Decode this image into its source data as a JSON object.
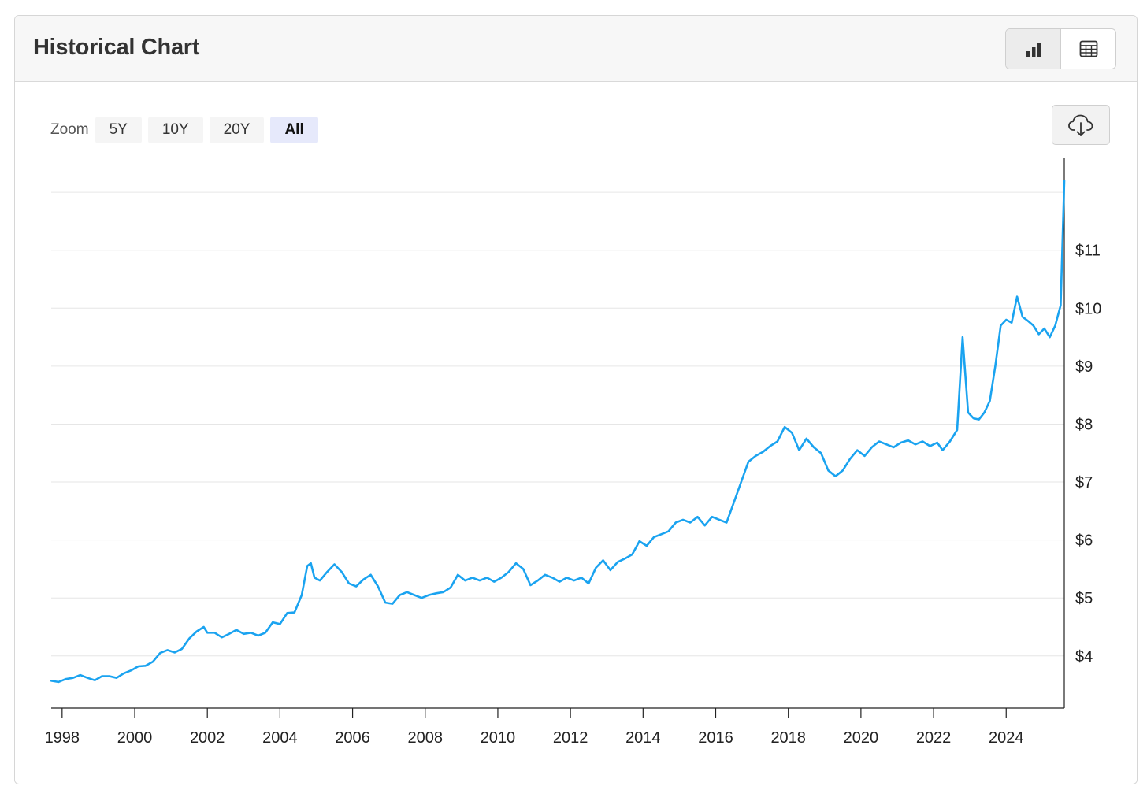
{
  "header": {
    "title": "Historical Chart",
    "chart_view_icon": "bar-chart-icon",
    "table_view_icon": "table-icon"
  },
  "zoom": {
    "label": "Zoom",
    "options": [
      "5Y",
      "10Y",
      "20Y",
      "All"
    ],
    "selected": "All"
  },
  "download_icon": "cloud-download-icon",
  "colors": {
    "line": "#1aa3f0",
    "grid": "#e6e6e6",
    "axis": "#222222",
    "zoom_selected_bg": "#e6e9fb"
  },
  "chart_data": {
    "type": "line",
    "title": "",
    "xlabel": "",
    "ylabel": "",
    "grid": true,
    "y_axis_side": "right",
    "xlim": [
      1997.7,
      2025.6
    ],
    "ylim": [
      3.1,
      12.6
    ],
    "x_ticks": [
      1998,
      2000,
      2002,
      2004,
      2006,
      2008,
      2010,
      2012,
      2014,
      2016,
      2018,
      2020,
      2022,
      2024
    ],
    "x_tick_labels": [
      "1998",
      "2000",
      "2002",
      "2004",
      "2006",
      "2008",
      "2010",
      "2012",
      "2014",
      "2016",
      "2018",
      "2020",
      "2022",
      "2024"
    ],
    "y_ticks": [
      4,
      5,
      6,
      7,
      8,
      9,
      10,
      11
    ],
    "y_tick_labels": [
      "$4",
      "$5",
      "$6",
      "$7",
      "$8",
      "$9",
      "$10",
      "$11"
    ],
    "y_gridlines": [
      4,
      5,
      6,
      7,
      8,
      9,
      10,
      11,
      12
    ],
    "series": [
      {
        "values": [
          [
            1997.7,
            3.57
          ],
          [
            1997.9,
            3.55
          ],
          [
            1998.1,
            3.6
          ],
          [
            1998.3,
            3.62
          ],
          [
            1998.5,
            3.67
          ],
          [
            1998.7,
            3.62
          ],
          [
            1998.9,
            3.58
          ],
          [
            1999.1,
            3.65
          ],
          [
            1999.3,
            3.65
          ],
          [
            1999.5,
            3.62
          ],
          [
            1999.7,
            3.7
          ],
          [
            1999.9,
            3.75
          ],
          [
            2000.1,
            3.82
          ],
          [
            2000.3,
            3.83
          ],
          [
            2000.5,
            3.9
          ],
          [
            2000.7,
            4.05
          ],
          [
            2000.9,
            4.1
          ],
          [
            2001.1,
            4.06
          ],
          [
            2001.3,
            4.12
          ],
          [
            2001.5,
            4.3
          ],
          [
            2001.7,
            4.42
          ],
          [
            2001.9,
            4.5
          ],
          [
            2002.0,
            4.4
          ],
          [
            2002.2,
            4.4
          ],
          [
            2002.4,
            4.32
          ],
          [
            2002.6,
            4.38
          ],
          [
            2002.8,
            4.45
          ],
          [
            2003.0,
            4.38
          ],
          [
            2003.2,
            4.4
          ],
          [
            2003.4,
            4.35
          ],
          [
            2003.6,
            4.4
          ],
          [
            2003.8,
            4.58
          ],
          [
            2004.0,
            4.55
          ],
          [
            2004.2,
            4.74
          ],
          [
            2004.4,
            4.75
          ],
          [
            2004.6,
            5.05
          ],
          [
            2004.75,
            5.55
          ],
          [
            2004.85,
            5.6
          ],
          [
            2004.95,
            5.35
          ],
          [
            2005.1,
            5.3
          ],
          [
            2005.3,
            5.45
          ],
          [
            2005.5,
            5.58
          ],
          [
            2005.7,
            5.45
          ],
          [
            2005.9,
            5.25
          ],
          [
            2006.1,
            5.2
          ],
          [
            2006.3,
            5.32
          ],
          [
            2006.5,
            5.4
          ],
          [
            2006.7,
            5.2
          ],
          [
            2006.9,
            4.92
          ],
          [
            2007.1,
            4.9
          ],
          [
            2007.3,
            5.05
          ],
          [
            2007.5,
            5.1
          ],
          [
            2007.7,
            5.05
          ],
          [
            2007.9,
            5.0
          ],
          [
            2008.1,
            5.05
          ],
          [
            2008.3,
            5.08
          ],
          [
            2008.5,
            5.1
          ],
          [
            2008.7,
            5.18
          ],
          [
            2008.9,
            5.4
          ],
          [
            2009.1,
            5.3
          ],
          [
            2009.3,
            5.35
          ],
          [
            2009.5,
            5.3
          ],
          [
            2009.7,
            5.35
          ],
          [
            2009.9,
            5.28
          ],
          [
            2010.1,
            5.35
          ],
          [
            2010.3,
            5.45
          ],
          [
            2010.5,
            5.6
          ],
          [
            2010.7,
            5.5
          ],
          [
            2010.9,
            5.22
          ],
          [
            2011.1,
            5.3
          ],
          [
            2011.3,
            5.4
          ],
          [
            2011.5,
            5.35
          ],
          [
            2011.7,
            5.28
          ],
          [
            2011.9,
            5.35
          ],
          [
            2012.1,
            5.3
          ],
          [
            2012.3,
            5.35
          ],
          [
            2012.5,
            5.25
          ],
          [
            2012.7,
            5.52
          ],
          [
            2012.9,
            5.65
          ],
          [
            2013.1,
            5.48
          ],
          [
            2013.3,
            5.62
          ],
          [
            2013.5,
            5.68
          ],
          [
            2013.7,
            5.75
          ],
          [
            2013.9,
            5.98
          ],
          [
            2014.1,
            5.9
          ],
          [
            2014.3,
            6.05
          ],
          [
            2014.5,
            6.1
          ],
          [
            2014.7,
            6.15
          ],
          [
            2014.9,
            6.3
          ],
          [
            2015.1,
            6.35
          ],
          [
            2015.3,
            6.3
          ],
          [
            2015.5,
            6.4
          ],
          [
            2015.7,
            6.25
          ],
          [
            2015.9,
            6.4
          ],
          [
            2016.1,
            6.35
          ],
          [
            2016.3,
            6.3
          ],
          [
            2016.5,
            6.65
          ],
          [
            2016.7,
            7.0
          ],
          [
            2016.9,
            7.35
          ],
          [
            2017.1,
            7.45
          ],
          [
            2017.3,
            7.52
          ],
          [
            2017.5,
            7.62
          ],
          [
            2017.7,
            7.7
          ],
          [
            2017.9,
            7.95
          ],
          [
            2018.1,
            7.85
          ],
          [
            2018.3,
            7.55
          ],
          [
            2018.5,
            7.75
          ],
          [
            2018.7,
            7.6
          ],
          [
            2018.9,
            7.5
          ],
          [
            2019.1,
            7.2
          ],
          [
            2019.3,
            7.1
          ],
          [
            2019.5,
            7.2
          ],
          [
            2019.7,
            7.4
          ],
          [
            2019.9,
            7.55
          ],
          [
            2020.1,
            7.45
          ],
          [
            2020.3,
            7.6
          ],
          [
            2020.5,
            7.7
          ],
          [
            2020.7,
            7.65
          ],
          [
            2020.9,
            7.6
          ],
          [
            2021.1,
            7.68
          ],
          [
            2021.3,
            7.72
          ],
          [
            2021.5,
            7.65
          ],
          [
            2021.7,
            7.7
          ],
          [
            2021.9,
            7.62
          ],
          [
            2022.1,
            7.68
          ],
          [
            2022.25,
            7.55
          ],
          [
            2022.45,
            7.7
          ],
          [
            2022.65,
            7.9
          ],
          [
            2022.8,
            9.5
          ],
          [
            2022.95,
            8.2
          ],
          [
            2023.1,
            8.1
          ],
          [
            2023.25,
            8.08
          ],
          [
            2023.4,
            8.2
          ],
          [
            2023.55,
            8.4
          ],
          [
            2023.7,
            9.0
          ],
          [
            2023.85,
            9.7
          ],
          [
            2024.0,
            9.8
          ],
          [
            2024.15,
            9.75
          ],
          [
            2024.3,
            10.2
          ],
          [
            2024.45,
            9.85
          ],
          [
            2024.6,
            9.78
          ],
          [
            2024.75,
            9.7
          ],
          [
            2024.9,
            9.55
          ],
          [
            2025.05,
            9.65
          ],
          [
            2025.2,
            9.5
          ],
          [
            2025.35,
            9.7
          ],
          [
            2025.5,
            10.05
          ],
          [
            2025.6,
            12.2
          ]
        ]
      }
    ]
  }
}
